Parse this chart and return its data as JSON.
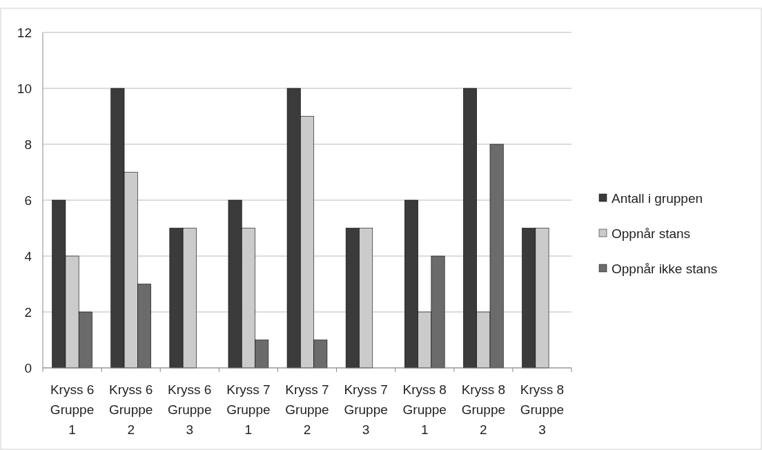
{
  "chart_data": {
    "type": "bar",
    "categories": [
      "Kryss 6 Gruppe 1",
      "Kryss 6 Gruppe 2",
      "Kryss 6 Gruppe 3",
      "Kryss 7 Gruppe 1",
      "Kryss 7 Gruppe 2",
      "Kryss 7 Gruppe 3",
      "Kryss 8 Gruppe 1",
      "Kryss 8 Gruppe 2",
      "Kryss 8 Gruppe 3"
    ],
    "series": [
      {
        "name": "Antall i gruppen",
        "color": "#3b3b3b",
        "values": [
          6,
          10,
          5,
          6,
          10,
          5,
          6,
          10,
          5
        ]
      },
      {
        "name": "Oppnår stans",
        "color": "#cbcbcb",
        "values": [
          4,
          7,
          5,
          5,
          9,
          5,
          2,
          2,
          5
        ]
      },
      {
        "name": "Oppnår ikke stans",
        "color": "#6b6b6b",
        "values": [
          2,
          3,
          0,
          1,
          1,
          0,
          4,
          8,
          0
        ]
      }
    ],
    "ylim": [
      0,
      12
    ],
    "yticks": [
      0,
      2,
      4,
      6,
      8,
      10,
      12
    ],
    "grid": "y",
    "legend": "right"
  }
}
